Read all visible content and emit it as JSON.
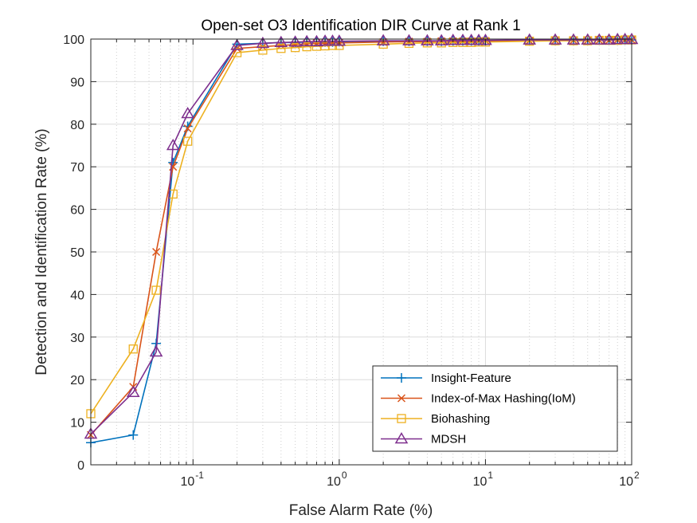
{
  "chart_data": {
    "type": "line",
    "title": "Open-set O3 Identification DIR Curve at Rank 1",
    "xlabel": "False Alarm Rate (%)",
    "ylabel": "Detection and Identification Rate (%)",
    "xscale": "log",
    "xlim": [
      0.02,
      100
    ],
    "ylim": [
      0,
      100
    ],
    "xticks": [
      {
        "value": 0.1,
        "base": "10",
        "exp": "-1"
      },
      {
        "value": 1,
        "base": "10",
        "exp": "0"
      },
      {
        "value": 10,
        "base": "10",
        "exp": "1"
      },
      {
        "value": 100,
        "base": "10",
        "exp": "2"
      }
    ],
    "yticks": [
      "0",
      "10",
      "20",
      "30",
      "40",
      "50",
      "60",
      "70",
      "80",
      "90",
      "100"
    ],
    "grid": true,
    "legend_position": "bottom-right",
    "series": [
      {
        "name": "Insight-Feature",
        "color": "#0072BD",
        "marker": "plus",
        "x": [
          0.02,
          0.039,
          0.056,
          0.073,
          0.092,
          0.2,
          0.3,
          0.4,
          0.5,
          0.6,
          0.7,
          0.8,
          0.9,
          1,
          2,
          3,
          4,
          5,
          6,
          7,
          8,
          9,
          10,
          20,
          30,
          40,
          50,
          60,
          70,
          80,
          90,
          100
        ],
        "y": [
          5.2,
          7.0,
          28.5,
          71.0,
          79.5,
          98.8,
          99.0,
          99.2,
          99.2,
          99.3,
          99.3,
          99.3,
          99.3,
          99.4,
          99.5,
          99.5,
          99.5,
          99.5,
          99.6,
          99.6,
          99.6,
          99.6,
          99.6,
          99.7,
          99.7,
          99.7,
          99.8,
          99.8,
          99.8,
          99.8,
          99.8,
          99.8
        ]
      },
      {
        "name": "Index-of-Max Hashing(IoM)",
        "color": "#D95319",
        "marker": "x",
        "x": [
          0.02,
          0.039,
          0.056,
          0.073,
          0.092,
          0.2,
          0.3,
          0.4,
          0.5,
          0.6,
          0.7,
          0.8,
          0.9,
          1,
          2,
          3,
          4,
          5,
          6,
          7,
          8,
          9,
          10,
          20,
          30,
          40,
          50,
          60,
          70,
          80,
          90,
          100
        ],
        "y": [
          7.0,
          18.3,
          50.0,
          70.0,
          79.0,
          97.8,
          98.2,
          98.5,
          98.7,
          98.9,
          99.0,
          99.0,
          99.1,
          99.1,
          99.3,
          99.4,
          99.4,
          99.5,
          99.5,
          99.5,
          99.5,
          99.5,
          99.6,
          99.6,
          99.7,
          99.7,
          99.7,
          99.7,
          99.7,
          99.8,
          99.8,
          99.8
        ]
      },
      {
        "name": "Biohashing",
        "color": "#EDB120",
        "marker": "square",
        "x": [
          0.02,
          0.039,
          0.056,
          0.073,
          0.092,
          0.2,
          0.3,
          0.4,
          0.5,
          0.6,
          0.7,
          0.8,
          0.9,
          1,
          2,
          3,
          4,
          5,
          6,
          7,
          8,
          9,
          10,
          20,
          30,
          40,
          50,
          60,
          70,
          80,
          90,
          100
        ],
        "y": [
          12.0,
          27.2,
          41.0,
          63.6,
          76.0,
          96.8,
          97.4,
          97.8,
          98.0,
          98.2,
          98.3,
          98.4,
          98.5,
          98.5,
          98.8,
          99.0,
          99.1,
          99.1,
          99.2,
          99.2,
          99.2,
          99.3,
          99.3,
          99.5,
          99.6,
          99.6,
          99.6,
          99.7,
          99.7,
          99.7,
          99.8,
          99.8
        ]
      },
      {
        "name": "MDSH",
        "color": "#7E2F8E",
        "marker": "triangle",
        "x": [
          0.02,
          0.039,
          0.056,
          0.073,
          0.092,
          0.2,
          0.3,
          0.4,
          0.5,
          0.6,
          0.7,
          0.8,
          0.9,
          1,
          2,
          3,
          4,
          5,
          6,
          7,
          8,
          9,
          10,
          20,
          30,
          40,
          50,
          60,
          70,
          80,
          90,
          100
        ],
        "y": [
          7.2,
          17.0,
          26.5,
          75.0,
          82.5,
          98.5,
          99.0,
          99.2,
          99.3,
          99.4,
          99.4,
          99.5,
          99.5,
          99.5,
          99.6,
          99.6,
          99.6,
          99.6,
          99.7,
          99.7,
          99.7,
          99.7,
          99.7,
          99.8,
          99.8,
          99.8,
          99.8,
          99.8,
          99.8,
          99.9,
          99.9,
          99.9
        ]
      }
    ]
  }
}
